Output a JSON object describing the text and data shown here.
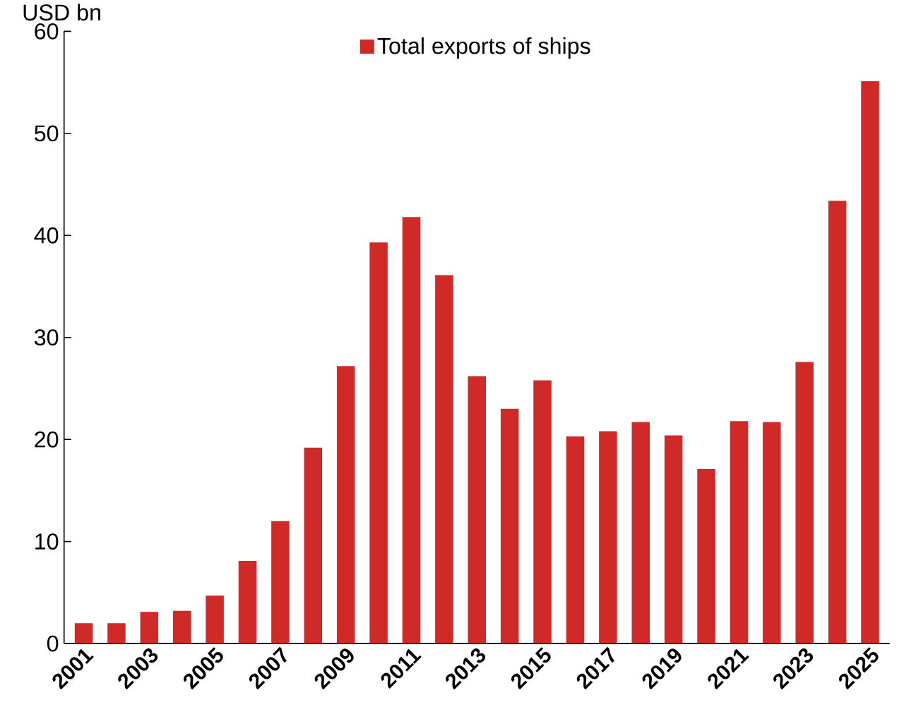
{
  "chart_data": {
    "type": "bar",
    "ylabel": "USD bn",
    "categories": [
      "2001",
      null,
      "2003",
      null,
      "2005",
      null,
      "2007",
      null,
      "2009",
      null,
      "2011",
      null,
      "2013",
      null,
      "2015",
      null,
      "2017",
      null,
      "2019",
      null,
      "2021",
      null,
      "2023",
      null,
      "2025"
    ],
    "series": [
      {
        "name": "Total exports of ships",
        "color": "#d02a28",
        "values": [
          2.0,
          2.0,
          3.1,
          3.2,
          4.7,
          8.1,
          12.0,
          19.2,
          27.2,
          39.3,
          41.8,
          36.1,
          26.2,
          23.0,
          25.8,
          20.3,
          20.8,
          21.7,
          20.4,
          17.1,
          21.8,
          21.7,
          27.6,
          43.4,
          55.1
        ]
      }
    ],
    "ylim": [
      0,
      60
    ],
    "yticks": [
      0,
      10,
      20,
      30,
      40,
      50,
      60
    ],
    "grid": false,
    "legend": "top"
  }
}
